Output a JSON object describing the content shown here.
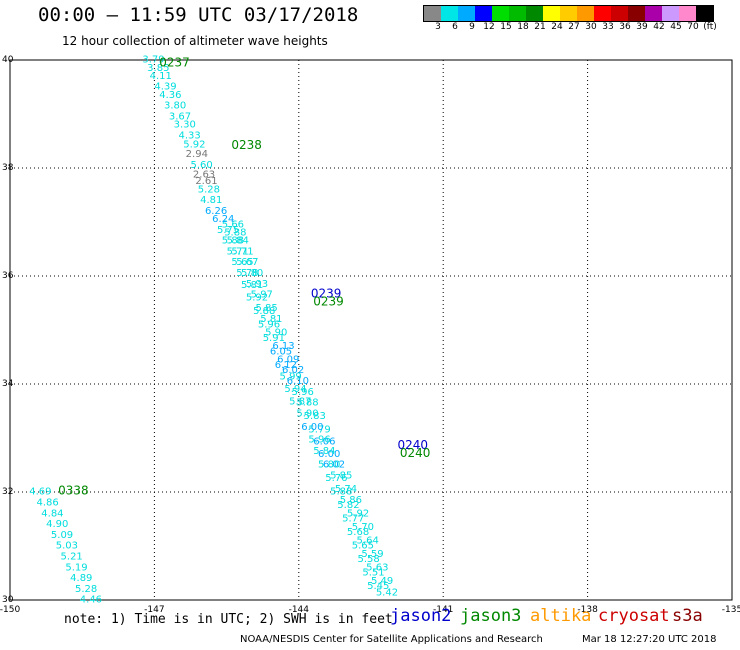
{
  "title": "00:00 – 11:59 UTC 03/17/2018",
  "subtitle": "12 hour collection of altimeter wave heights",
  "colorbar": {
    "colors": [
      "#888888",
      "#00e5e5",
      "#00aaff",
      "#0000ff",
      "#00dd00",
      "#00bb00",
      "#008800",
      "#ffff00",
      "#ffcc00",
      "#ff9900",
      "#ff0000",
      "#cc0000",
      "#880000",
      "#aa00aa",
      "#cc99ff",
      "#ff88cc",
      "#000000"
    ],
    "labels": [
      "3",
      "6",
      "9",
      "12",
      "15",
      "18",
      "21",
      "24",
      "27",
      "30",
      "33",
      "36",
      "39",
      "42",
      "45",
      "70",
      "(ft)"
    ]
  },
  "map": {
    "lon_labels": [
      "-150",
      "-147",
      "-144",
      "-141",
      "-138",
      "-135"
    ],
    "lat_labels": [
      "40",
      "38",
      "36",
      "34",
      "32",
      "30"
    ],
    "lon_range": [
      -150,
      -135
    ],
    "lat_range": [
      30,
      40
    ]
  },
  "passes": [
    {
      "id": "0237",
      "color": "#008800",
      "lon": -146.9,
      "lat": 39.88
    },
    {
      "id": "0238",
      "color": "#008800",
      "lon": -145.4,
      "lat": 38.35
    },
    {
      "id": "0239",
      "color": "#0000cc",
      "lon": -143.75,
      "lat": 35.6
    },
    {
      "id": "0239",
      "color": "#008800",
      "lon": -143.7,
      "lat": 35.45
    },
    {
      "id": "0240",
      "color": "#0000cc",
      "lon": -141.95,
      "lat": 32.8
    },
    {
      "id": "0240",
      "color": "#008800",
      "lon": -141.9,
      "lat": 32.65
    },
    {
      "id": "0338",
      "color": "#008800",
      "lon": -149.0,
      "lat": 31.95
    }
  ],
  "tracks": [
    {
      "lon": -147.25,
      "lat": 39.95,
      "value": "3.79",
      "color": "#00dddd"
    },
    {
      "lon": -147.15,
      "lat": 39.8,
      "value": "3.85",
      "color": "#00dddd"
    },
    {
      "lon": -147.1,
      "lat": 39.65,
      "value": "4.11",
      "color": "#00dddd"
    },
    {
      "lon": -147.0,
      "lat": 39.45,
      "value": "4.39",
      "color": "#00dddd"
    },
    {
      "lon": -146.9,
      "lat": 39.3,
      "value": "4.36",
      "color": "#00dddd"
    },
    {
      "lon": -146.8,
      "lat": 39.1,
      "value": "3.80",
      "color": "#00dddd"
    },
    {
      "lon": -146.7,
      "lat": 38.9,
      "value": "3.67",
      "color": "#00dddd"
    },
    {
      "lon": -146.6,
      "lat": 38.75,
      "value": "3.30",
      "color": "#00dddd"
    },
    {
      "lon": -146.5,
      "lat": 38.55,
      "value": "4.33",
      "color": "#00dddd"
    },
    {
      "lon": -146.4,
      "lat": 38.38,
      "value": "5.92",
      "color": "#00dddd"
    },
    {
      "lon": -146.35,
      "lat": 38.2,
      "value": "2.94",
      "color": "#777777"
    },
    {
      "lon": -146.25,
      "lat": 38.0,
      "value": "5.60",
      "color": "#00dddd"
    },
    {
      "lon": -146.2,
      "lat": 37.82,
      "value": "2.63",
      "color": "#777777"
    },
    {
      "lon": -146.15,
      "lat": 37.7,
      "value": "2.61",
      "color": "#777777"
    },
    {
      "lon": -146.1,
      "lat": 37.55,
      "value": "5.28",
      "color": "#00dddd"
    },
    {
      "lon": -146.05,
      "lat": 37.35,
      "value": "4.81",
      "color": "#00dddd"
    },
    {
      "lon": -145.95,
      "lat": 37.15,
      "value": "6.26",
      "color": "#00aaff"
    },
    {
      "lon": -145.6,
      "lat": 36.9,
      "value": "5.66",
      "color": "#00dddd"
    },
    {
      "lon": -145.55,
      "lat": 36.75,
      "value": "5.88",
      "color": "#00dddd"
    },
    {
      "lon": -145.5,
      "lat": 36.6,
      "value": "5.84",
      "color": "#00dddd"
    },
    {
      "lon": -145.4,
      "lat": 36.4,
      "value": "5.71",
      "color": "#00dddd"
    },
    {
      "lon": -145.3,
      "lat": 36.2,
      "value": "5.67",
      "color": "#00dddd"
    },
    {
      "lon": -145.2,
      "lat": 36.0,
      "value": "5.80",
      "color": "#00dddd"
    },
    {
      "lon": -145.1,
      "lat": 35.8,
      "value": "5.93",
      "color": "#00dddd"
    },
    {
      "lon": -145.0,
      "lat": 35.6,
      "value": "5.97",
      "color": "#00dddd"
    },
    {
      "lon": -144.9,
      "lat": 35.35,
      "value": "5.85",
      "color": "#00dddd"
    },
    {
      "lon": -144.8,
      "lat": 35.15,
      "value": "5.81",
      "color": "#00dddd"
    },
    {
      "lon": -144.7,
      "lat": 34.9,
      "value": "5.90",
      "color": "#00dddd"
    },
    {
      "lon": -144.55,
      "lat": 34.65,
      "value": "6.13",
      "color": "#00aaff"
    },
    {
      "lon": -144.45,
      "lat": 34.4,
      "value": "6.09",
      "color": "#00aaff"
    },
    {
      "lon": -144.35,
      "lat": 34.2,
      "value": "6.02",
      "color": "#00aaff"
    },
    {
      "lon": -144.25,
      "lat": 34.0,
      "value": "6.10",
      "color": "#00aaff"
    },
    {
      "lon": -144.15,
      "lat": 33.8,
      "value": "5.96",
      "color": "#00dddd"
    },
    {
      "lon": -144.05,
      "lat": 33.6,
      "value": "5.88",
      "color": "#00dddd"
    },
    {
      "lon": -143.9,
      "lat": 33.35,
      "value": "5.83",
      "color": "#00dddd"
    },
    {
      "lon": -143.8,
      "lat": 33.1,
      "value": "5.79",
      "color": "#00dddd"
    },
    {
      "lon": -143.7,
      "lat": 32.88,
      "value": "6.06",
      "color": "#00aaff"
    },
    {
      "lon": -143.6,
      "lat": 32.65,
      "value": "6.00",
      "color": "#00aaff"
    },
    {
      "lon": -143.5,
      "lat": 32.45,
      "value": "6.02",
      "color": "#00aaff"
    },
    {
      "lon": -143.35,
      "lat": 32.25,
      "value": "5.85",
      "color": "#00dddd"
    },
    {
      "lon": -143.25,
      "lat": 32.0,
      "value": "5.74",
      "color": "#00dddd"
    },
    {
      "lon": -143.15,
      "lat": 31.8,
      "value": "5.86",
      "color": "#00dddd"
    },
    {
      "lon": -143.0,
      "lat": 31.55,
      "value": "5.92",
      "color": "#00dddd"
    },
    {
      "lon": -142.9,
      "lat": 31.3,
      "value": "5.70",
      "color": "#00dddd"
    },
    {
      "lon": -142.8,
      "lat": 31.05,
      "value": "5.64",
      "color": "#00dddd"
    },
    {
      "lon": -142.7,
      "lat": 30.8,
      "value": "5.59",
      "color": "#00dddd"
    },
    {
      "lon": -142.6,
      "lat": 30.55,
      "value": "5.63",
      "color": "#00dddd"
    },
    {
      "lon": -142.5,
      "lat": 30.3,
      "value": "5.49",
      "color": "#00dddd"
    },
    {
      "lon": -142.4,
      "lat": 30.08,
      "value": "5.42",
      "color": "#00dddd"
    },
    {
      "lon": -149.6,
      "lat": 31.95,
      "value": "4.69",
      "color": "#00dddd"
    },
    {
      "lon": -149.45,
      "lat": 31.75,
      "value": "4.86",
      "color": "#00dddd"
    },
    {
      "lon": -149.35,
      "lat": 31.55,
      "value": "4.84",
      "color": "#00dddd"
    },
    {
      "lon": -149.25,
      "lat": 31.35,
      "value": "4.90",
      "color": "#00dddd"
    },
    {
      "lon": -149.15,
      "lat": 31.15,
      "value": "5.09",
      "color": "#00dddd"
    },
    {
      "lon": -149.05,
      "lat": 30.95,
      "value": "5.03",
      "color": "#00dddd"
    },
    {
      "lon": -148.95,
      "lat": 30.75,
      "value": "5.21",
      "color": "#00dddd"
    },
    {
      "lon": -148.85,
      "lat": 30.55,
      "value": "5.19",
      "color": "#00dddd"
    },
    {
      "lon": -148.75,
      "lat": 30.35,
      "value": "4.89",
      "color": "#00dddd"
    },
    {
      "lon": -148.65,
      "lat": 30.15,
      "value": "5.28",
      "color": "#00dddd"
    },
    {
      "lon": -148.55,
      "lat": 29.95,
      "value": "4.46",
      "color": "#00dddd"
    }
  ],
  "second_track": [
    {
      "lon": -145.8,
      "lat": 37.0,
      "value": "6.24",
      "color": "#00aaff"
    },
    {
      "lon": -145.7,
      "lat": 36.8,
      "value": "5.75",
      "color": "#00dddd"
    },
    {
      "lon": -145.6,
      "lat": 36.6,
      "value": "5.88",
      "color": "#00dddd"
    },
    {
      "lon": -145.5,
      "lat": 36.4,
      "value": "5.71",
      "color": "#00dddd"
    },
    {
      "lon": -145.4,
      "lat": 36.2,
      "value": "5.65",
      "color": "#00dddd"
    },
    {
      "lon": -145.3,
      "lat": 36.0,
      "value": "5.78",
      "color": "#00dddd"
    },
    {
      "lon": -145.2,
      "lat": 35.78,
      "value": "5.81",
      "color": "#00dddd"
    },
    {
      "lon": -145.1,
      "lat": 35.55,
      "value": "5.92",
      "color": "#00dddd"
    },
    {
      "lon": -144.95,
      "lat": 35.3,
      "value": "5.88",
      "color": "#00dddd"
    },
    {
      "lon": -144.85,
      "lat": 35.05,
      "value": "5.96",
      "color": "#00dddd"
    },
    {
      "lon": -144.75,
      "lat": 34.8,
      "value": "5.91",
      "color": "#00dddd"
    },
    {
      "lon": -144.6,
      "lat": 34.55,
      "value": "6.05",
      "color": "#00aaff"
    },
    {
      "lon": -144.5,
      "lat": 34.3,
      "value": "6.12",
      "color": "#00aaff"
    },
    {
      "lon": -144.4,
      "lat": 34.08,
      "value": "5.99",
      "color": "#00dddd"
    },
    {
      "lon": -144.3,
      "lat": 33.85,
      "value": "5.94",
      "color": "#00dddd"
    },
    {
      "lon": -144.2,
      "lat": 33.62,
      "value": "5.87",
      "color": "#00dddd"
    },
    {
      "lon": -144.05,
      "lat": 33.4,
      "value": "5.90",
      "color": "#00dddd"
    },
    {
      "lon": -143.95,
      "lat": 33.15,
      "value": "6.00",
      "color": "#00aaff"
    },
    {
      "lon": -143.8,
      "lat": 32.92,
      "value": "5.96",
      "color": "#00dddd"
    },
    {
      "lon": -143.7,
      "lat": 32.7,
      "value": "5.84",
      "color": "#00dddd"
    },
    {
      "lon": -143.6,
      "lat": 32.45,
      "value": "5.80",
      "color": "#00dddd"
    },
    {
      "lon": -143.45,
      "lat": 32.2,
      "value": "5.76",
      "color": "#00dddd"
    },
    {
      "lon": -143.35,
      "lat": 31.95,
      "value": "5.88",
      "color": "#00dddd"
    },
    {
      "lon": -143.2,
      "lat": 31.7,
      "value": "5.82",
      "color": "#00dddd"
    },
    {
      "lon": -143.1,
      "lat": 31.45,
      "value": "5.77",
      "color": "#00dddd"
    },
    {
      "lon": -143.0,
      "lat": 31.2,
      "value": "5.68",
      "color": "#00dddd"
    },
    {
      "lon": -142.9,
      "lat": 30.95,
      "value": "5.65",
      "color": "#00dddd"
    },
    {
      "lon": -142.78,
      "lat": 30.7,
      "value": "5.58",
      "color": "#00dddd"
    },
    {
      "lon": -142.68,
      "lat": 30.45,
      "value": "5.51",
      "color": "#00dddd"
    },
    {
      "lon": -142.58,
      "lat": 30.2,
      "value": "5.45",
      "color": "#00dddd"
    }
  ],
  "note": "note: 1) Time is in UTC; 2) SWH is in feet",
  "legend": [
    {
      "label": "jason2",
      "color": "#0000cc"
    },
    {
      "label": "jason3",
      "color": "#008800"
    },
    {
      "label": "altika",
      "color": "#ff9900"
    },
    {
      "label": "cryosat",
      "color": "#cc0000"
    },
    {
      "label": "s3a",
      "color": "#880000"
    }
  ],
  "footer": "NOAA/NESDIS Center for Satellite Applications and Research",
  "generated": "Mar 18 12:27:20 UTC 2018"
}
